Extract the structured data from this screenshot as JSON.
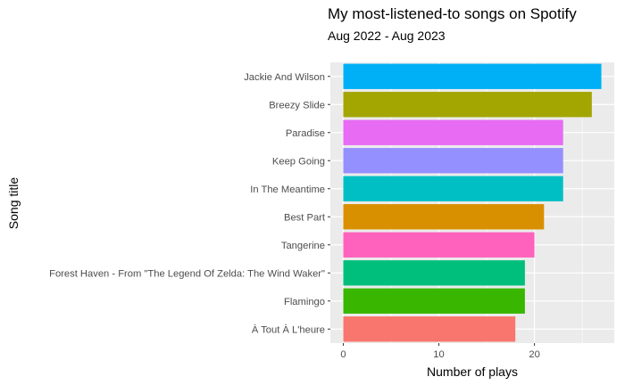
{
  "chart_data": {
    "type": "bar",
    "orientation": "horizontal",
    "title": "My most-listened-to songs on Spotify",
    "subtitle": "Aug 2022 - Aug 2023",
    "xlabel": "Number of plays",
    "ylabel": "Song title",
    "xlim": [
      0,
      28
    ],
    "xticks": [
      0,
      10,
      20
    ],
    "grid": true,
    "legend": "none",
    "categories": [
      "Jackie And Wilson",
      "Breezy Slide",
      "Paradise",
      "Keep Going",
      "In The Meantime",
      "Best Part",
      "Tangerine",
      "Forest Haven - From \"The Legend Of Zelda: The Wind Waker\"",
      "Flamingo",
      "À Tout À L'heure"
    ],
    "values": [
      27,
      26,
      23,
      23,
      23,
      21,
      20,
      19,
      19,
      18
    ],
    "colors": [
      "#00B0F6",
      "#A3A500",
      "#E76BF3",
      "#9590FF",
      "#00BFC4",
      "#D89000",
      "#FF62BC",
      "#00BF7D",
      "#39B600",
      "#F8766D"
    ]
  }
}
